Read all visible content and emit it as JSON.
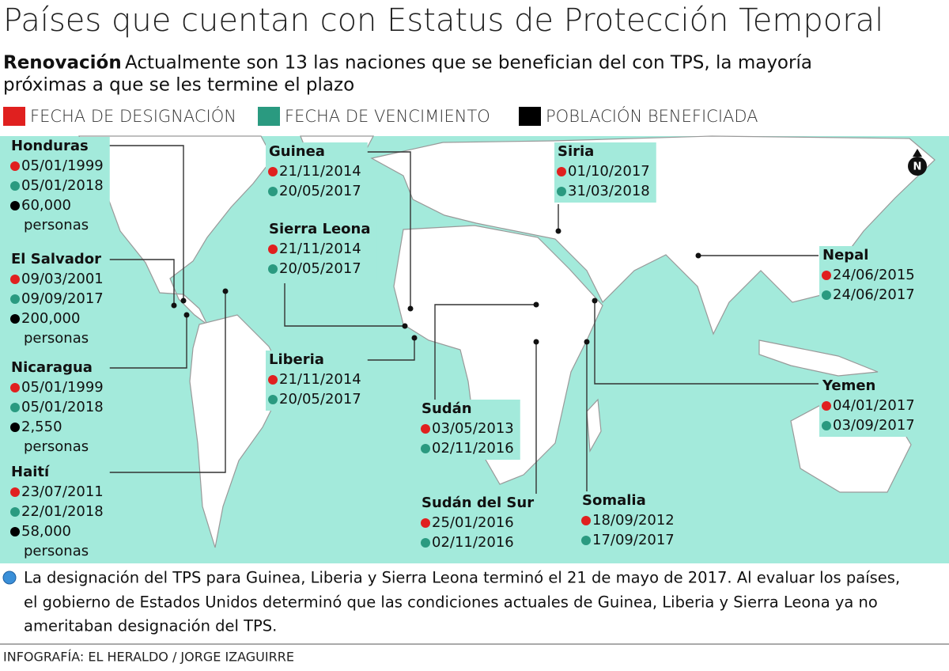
{
  "header": {
    "title": "Países que cuentan con Estatus de Protección Temporal",
    "subtitle_bold": "Renovación",
    "subtitle_lines": [
      "Actualmente son 13 las naciones que se benefician del con TPS, la mayoría",
      "próximas a que se les termine el plazo"
    ]
  },
  "legend": [
    {
      "label": "FECHA DE DESIGNACIÓN",
      "color": "#e0201f"
    },
    {
      "label": "FECHA DE VENCIMIENTO",
      "color": "#2a9a80"
    },
    {
      "label": "POBLACIÓN BENEFICIADA",
      "color": "#000000"
    }
  ],
  "compass": "N",
  "countries": [
    {
      "name": "Honduras",
      "designation": "05/01/1999",
      "expiration": "05/01/2018",
      "population": "60,000",
      "population_unit": "personas"
    },
    {
      "name": "El Salvador",
      "designation": "09/03/2001",
      "expiration": "09/09/2017",
      "population": "200,000",
      "population_unit": "personas"
    },
    {
      "name": "Nicaragua",
      "designation": "05/01/1999",
      "expiration": "05/01/2018",
      "population": "2,550",
      "population_unit": "personas"
    },
    {
      "name": "Haití",
      "designation": "23/07/2011",
      "expiration": "22/01/2018",
      "population": "58,000",
      "population_unit": "personas"
    },
    {
      "name": "Guinea",
      "designation": "21/11/2014",
      "expiration": "20/05/2017"
    },
    {
      "name": "Sierra Leona",
      "designation": "21/11/2014",
      "expiration": "20/05/2017"
    },
    {
      "name": "Liberia",
      "designation": "21/11/2014",
      "expiration": "20/05/2017"
    },
    {
      "name": "Sudán",
      "designation": "03/05/2013",
      "expiration": "02/11/2016"
    },
    {
      "name": "Sudán del Sur",
      "designation": "25/01/2016",
      "expiration": "02/11/2016"
    },
    {
      "name": "Siria",
      "designation": "01/10/2017",
      "expiration": "31/03/2018"
    },
    {
      "name": "Nepal",
      "designation": "24/06/2015",
      "expiration": "24/06/2017"
    },
    {
      "name": "Yemen",
      "designation": "04/01/2017",
      "expiration": "03/09/2017"
    },
    {
      "name": "Somalia",
      "designation": "18/09/2012",
      "expiration": "17/09/2017"
    }
  ],
  "note_lines": [
    "La designación del TPS para Guinea, Liberia y Sierra Leona terminó el 21 de mayo de 2017.  Al evaluar los países,",
    "el gobierno de Estados Unidos determinó que las condiciones actuales de Guinea, Liberia y Sierra Leona ya no",
    "ameritaban designación del TPS."
  ],
  "credit": "INFOGRAFÍA: EL HERALDO / JORGE IZAGUIRRE"
}
